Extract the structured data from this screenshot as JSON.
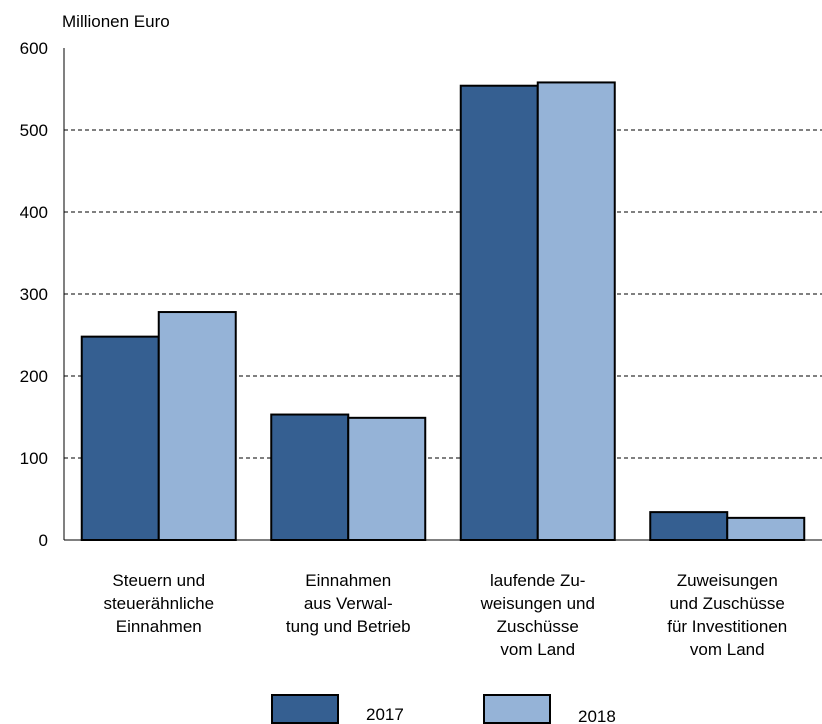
{
  "chart_data": {
    "type": "bar",
    "unit_label": "Millionen Euro",
    "categories": [
      [
        "Steuern und",
        "steuerähnliche",
        "Einnahmen"
      ],
      [
        "Einnahmen",
        "aus Verwal-",
        "tung und Betrieb"
      ],
      [
        "laufende Zu-",
        "weisungen und",
        "Zuschüsse",
        "vom Land"
      ],
      [
        "Zuweisungen",
        "und Zuschüsse",
        "für Investitionen",
        "vom Land"
      ]
    ],
    "series": [
      {
        "name": "2017",
        "color": "#355f91",
        "values": [
          248,
          153,
          554,
          34
        ]
      },
      {
        "name": "2018",
        "color": "#95b3d7",
        "values": [
          278,
          149,
          558,
          27
        ]
      }
    ],
    "ylim": [
      0,
      600
    ],
    "yticks": [
      "0",
      "100",
      "200",
      "300",
      "400",
      "500",
      "600"
    ],
    "grid": true,
    "legend_position": "bottom"
  }
}
